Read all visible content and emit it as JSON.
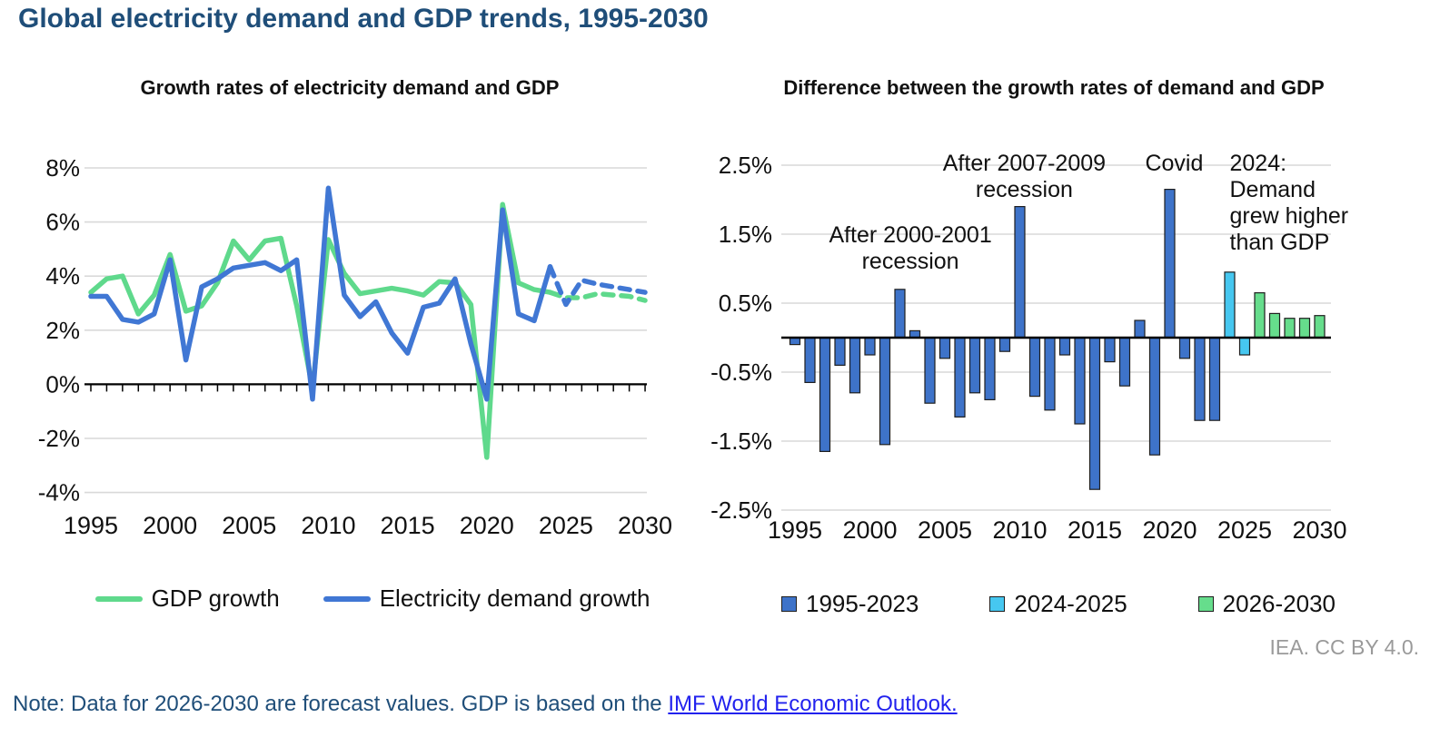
{
  "page": {
    "title": "Global electricity demand and GDP trends, 1995-2030",
    "credit": "IEA. CC BY 4.0.",
    "note_prefix": "Note: Data for 2026-2030 are forecast values. GDP is based on the ",
    "note_link": "IMF World Economic Outlook.",
    "colors": {
      "title_blue": "#1F4E79",
      "link_blue": "#2222EE",
      "gridline": "#D9D9D9",
      "axis_black": "#000000",
      "credit_gray": "#9a9a9a"
    }
  },
  "chart_data": [
    {
      "type": "line",
      "title": "Growth rates of electricity demand and GDP",
      "x": [
        1995,
        1996,
        1997,
        1998,
        1999,
        2000,
        2001,
        2002,
        2003,
        2004,
        2005,
        2006,
        2007,
        2008,
        2009,
        2010,
        2011,
        2012,
        2013,
        2014,
        2015,
        2016,
        2017,
        2018,
        2019,
        2020,
        2021,
        2022,
        2023,
        2024,
        2025,
        2026,
        2027,
        2028,
        2029,
        2030
      ],
      "xticks": [
        1995,
        2000,
        2005,
        2010,
        2015,
        2020,
        2025,
        2030
      ],
      "yticks": [
        8,
        6,
        4,
        2,
        0,
        -2,
        -4
      ],
      "ylim": [
        -4,
        8
      ],
      "ytick_suffix": "%",
      "forecast_dash_from_year": 2024,
      "series": [
        {
          "name": "GDP growth",
          "color": "#5FD98C",
          "values": [
            3.4,
            3.9,
            4.0,
            2.6,
            3.3,
            4.8,
            2.7,
            2.9,
            3.75,
            5.3,
            4.6,
            5.3,
            5.4,
            2.9,
            -0.15,
            5.35,
            4.1,
            3.35,
            3.45,
            3.55,
            3.45,
            3.3,
            3.8,
            3.75,
            2.95,
            -2.7,
            6.65,
            3.75,
            3.5,
            3.4,
            3.2,
            3.2,
            3.35,
            3.3,
            3.25,
            3.1
          ]
        },
        {
          "name": "Electricity demand growth",
          "color": "#4077D4",
          "values": [
            3.25,
            3.25,
            2.4,
            2.3,
            2.6,
            4.6,
            0.9,
            3.6,
            3.9,
            4.3,
            4.4,
            4.5,
            4.2,
            4.6,
            -0.55,
            7.25,
            3.3,
            2.5,
            3.05,
            1.9,
            1.15,
            2.85,
            3.0,
            3.9,
            1.5,
            -0.55,
            6.45,
            2.6,
            2.35,
            4.35,
            2.95,
            3.85,
            3.7,
            3.6,
            3.5,
            3.4
          ]
        }
      ]
    },
    {
      "type": "bar",
      "title": "Difference between the growth rates of demand and GDP",
      "x": [
        1995,
        1996,
        1997,
        1998,
        1999,
        2000,
        2001,
        2002,
        2003,
        2004,
        2005,
        2006,
        2007,
        2008,
        2009,
        2010,
        2011,
        2012,
        2013,
        2014,
        2015,
        2016,
        2017,
        2018,
        2019,
        2020,
        2021,
        2022,
        2023,
        2024,
        2025,
        2026,
        2027,
        2028,
        2029,
        2030
      ],
      "xticks": [
        1995,
        2000,
        2005,
        2010,
        2015,
        2020,
        2025,
        2030
      ],
      "yticks": [
        2.5,
        1.5,
        0.5,
        -0.5,
        -1.5,
        -2.5
      ],
      "ylim": [
        -2.5,
        2.5
      ],
      "ytick_suffix": "%",
      "values": [
        -0.1,
        -0.65,
        -1.65,
        -0.4,
        -0.8,
        -0.25,
        -1.55,
        0.7,
        0.1,
        -0.95,
        -0.3,
        -1.15,
        -0.8,
        -0.9,
        -0.2,
        1.9,
        -0.85,
        -1.05,
        -0.25,
        -1.25,
        -2.2,
        -0.35,
        -0.7,
        0.25,
        -1.7,
        2.15,
        -0.3,
        -1.2,
        -1.2,
        0.95,
        -0.25,
        0.65,
        0.35,
        0.28,
        0.28,
        0.32
      ],
      "groups": [
        {
          "label": "1995-2023",
          "from": 1995,
          "to": 2023,
          "color": "#3E73C9"
        },
        {
          "label": "2024-2025",
          "from": 2024,
          "to": 2025,
          "color": "#46C7F0"
        },
        {
          "label": "2026-2030",
          "from": 2026,
          "to": 2030,
          "color": "#66DD8C"
        }
      ],
      "bar_outline": "#1f1f1f",
      "annotations": [
        {
          "lines": [
            "After 2000-2001",
            "recession"
          ],
          "x_year": 2002.7,
          "y_value": 1.38,
          "anchor": "middle"
        },
        {
          "lines": [
            "After 2007-2009",
            "recession"
          ],
          "x_year": 2010.3,
          "y_value": 2.42,
          "anchor": "middle"
        },
        {
          "lines": [
            "Covid"
          ],
          "x_year": 2020.3,
          "y_value": 2.42,
          "anchor": "middle"
        },
        {
          "lines": [
            "2024:",
            "Demand",
            "grew higher",
            "than GDP"
          ],
          "x_year": 2024.0,
          "y_value": 2.42,
          "anchor": "start"
        }
      ]
    }
  ]
}
